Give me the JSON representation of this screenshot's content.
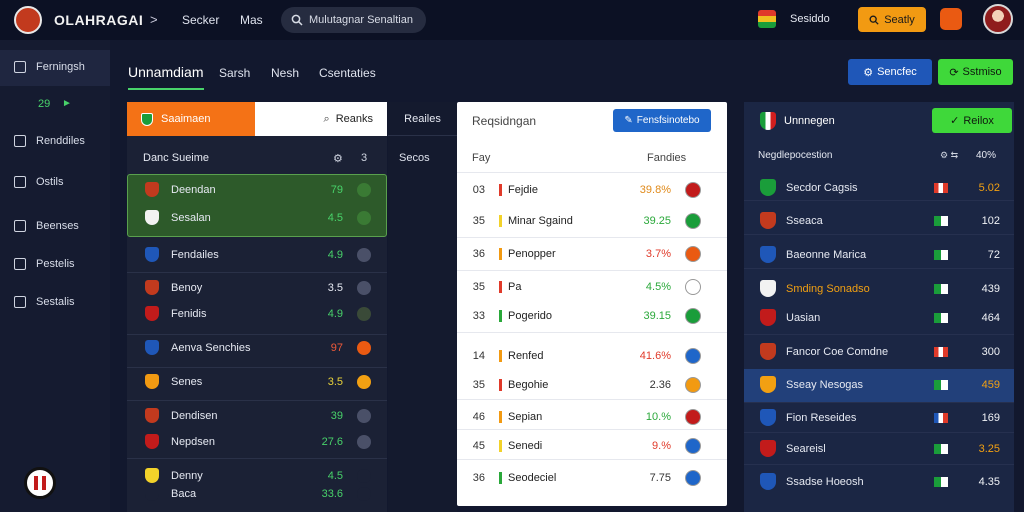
{
  "topbar": {
    "brand": "OLAHRAGAI",
    "chevron": ">",
    "nav_1": "Secker",
    "nav_2": "Mas",
    "search_value": "Mulutagnar Senaltian",
    "username": "Sesiddo",
    "action_label": "Seatly"
  },
  "sidebar": {
    "items": [
      {
        "label": "Ferningsh",
        "icon": "grid-icon"
      },
      {
        "label": "Renddiles",
        "icon": "calendar-icon"
      },
      {
        "label": "Ostils",
        "icon": "list-icon"
      },
      {
        "label": "Beenses",
        "icon": "home-icon"
      },
      {
        "label": "Pestelis",
        "icon": "pin-icon"
      },
      {
        "label": "Sestalis",
        "icon": "briefcase-icon"
      }
    ],
    "count": "29",
    "count_arrow": "►"
  },
  "section": {
    "title": "Unnamdiam",
    "tabs": [
      "Sarsh",
      "Nesh",
      "Csentaties"
    ],
    "btn_blue": "Sencfec",
    "btn_green": "Sstmiso"
  },
  "panel1": {
    "tab_active": "Saaimaen",
    "tab_input": "Reanks",
    "head": "Danc Sueime",
    "head_icon": "⚙",
    "head_num": "3",
    "rows": [
      {
        "name": "Deendan",
        "value": "79",
        "color": "#48d26a",
        "crest": "#c23a1e",
        "ic": "#3a7a34"
      },
      {
        "name": "Sesalan",
        "value": "4.5",
        "color": "#48d26a",
        "crest": "#f2f2f2",
        "ic": "#3a7a34"
      },
      {
        "name": "Fendailes",
        "value": "4.9",
        "color": "#48d26a",
        "crest": "#1f57b8",
        "ic": "#4a5068"
      },
      {
        "name": "Benoy",
        "value": "3.5",
        "color": "#e6e9f2",
        "crest": "#c23a1e",
        "ic": "#4a5068"
      },
      {
        "name": "Fenidis",
        "value": "4.9",
        "color": "#48d26a",
        "crest": "#c21b1b",
        "ic": "#3a4a38"
      },
      {
        "name": "Aenva Senchies",
        "value": "97",
        "color": "#f05a3a",
        "crest": "#1f57b8",
        "ic": "#ea5a12"
      },
      {
        "name": "Senes",
        "value": "3.5",
        "color": "#e8d23a",
        "crest": "#f29a12",
        "ic": "#f2a012"
      },
      {
        "name": "Dendisen",
        "value": "39",
        "color": "#48d26a",
        "crest": "#c23a1e",
        "ic": "#4a5068"
      },
      {
        "name": "Nepdsen",
        "value": "27.6",
        "color": "#48d26a",
        "crest": "#c21b1b",
        "ic": "#4a5068"
      },
      {
        "name": "Denny",
        "value": "4.5",
        "color": "#48d26a",
        "crest": "#f2d22a",
        "ic": "#1b2135"
      },
      {
        "name": "Baca",
        "value": "33.6",
        "color": "#48d26a",
        "crest": "#1b2135",
        "ic": "#1b2135"
      }
    ]
  },
  "strip": {
    "head": "Reailes",
    "sub": "Secos"
  },
  "panel2": {
    "title": "Reqsidngan",
    "btn": "Fensfsinotebo",
    "head_1": "Fay",
    "head_2": "Fandies",
    "rows": [
      {
        "num": "03",
        "bar": "#e03a2a",
        "name": "Fejdie",
        "value": "39.8%",
        "vcolor": "#e08a1a",
        "ic": "#c21b1b"
      },
      {
        "num": "35",
        "bar": "#f2d22a",
        "name": "Minar Sgaind",
        "value": "39.25",
        "vcolor": "#2aa83a",
        "ic": "#1a9d3a"
      },
      {
        "num": "36",
        "bar": "#f29a12",
        "name": "Penopper",
        "value": "3.7%",
        "vcolor": "#e03a2a",
        "ic": "#ea5a12"
      },
      {
        "num": "35",
        "bar": "#e03a2a",
        "name": "Pa",
        "value": "4.5%",
        "vcolor": "#2aa83a",
        "ic": "#ffffff"
      },
      {
        "num": "33",
        "bar": "#2aa83a",
        "name": "Pogerido",
        "value": "39.15",
        "vcolor": "#2aa83a",
        "ic": "#1a9d3a"
      },
      {
        "num": "14",
        "bar": "#f29a12",
        "name": "Renfed",
        "value": "41.6%",
        "vcolor": "#e03a2a",
        "ic": "#1f66c9"
      },
      {
        "num": "35",
        "bar": "#e03a2a",
        "name": "Begohie",
        "value": "2.36",
        "vcolor": "#333333",
        "ic": "#f29a12"
      },
      {
        "num": "46",
        "bar": "#f29a12",
        "name": "Sepian",
        "value": "10.%",
        "vcolor": "#2aa83a",
        "ic": "#c21b1b"
      },
      {
        "num": "45",
        "bar": "#f2d22a",
        "name": "Senedi",
        "value": "9.%",
        "vcolor": "#e03a2a",
        "ic": "#1f66c9"
      },
      {
        "num": "36",
        "bar": "#2aa83a",
        "name": "Seodeciel",
        "value": "7.75",
        "vcolor": "#333333",
        "ic": "#1f66c9"
      }
    ]
  },
  "panel3": {
    "title": "Unnnegen",
    "btn": "Reilox",
    "head": "Negdlepocestion",
    "head_icon": "⚙ ⇆",
    "head_right": "40%",
    "rows": [
      {
        "name": "Secdor Cagsis",
        "value": "5.02",
        "vcolor": "#f2a012",
        "crest": "#1a9d3a",
        "flag": "linear-gradient(90deg,#e03a2a 0 33%,#fff 33% 66%,#e03a2a 66%)"
      },
      {
        "name": "Sseaca",
        "value": "102",
        "vcolor": "#f0f2f6",
        "crest": "#c23a1e",
        "flag": "linear-gradient(90deg,#1a9d3a 0 50%,#fff 50%)"
      },
      {
        "name": "Baeonne Marica",
        "value": "72",
        "vcolor": "#f0f2f6",
        "crest": "#1f57b8",
        "flag": "linear-gradient(90deg,#1a9d3a 0 50%,#fff 50%)"
      },
      {
        "name": "Smding Sonadso",
        "value": "439",
        "vcolor": "#f0f2f6",
        "crest": "#f2f2f2",
        "flag": "linear-gradient(90deg,#1a9d3a 0 50%,#fff 50%)",
        "ncolor": "#f2a012"
      },
      {
        "name": "Uasian",
        "value": "464",
        "vcolor": "#f0f2f6",
        "crest": "#c21b1b",
        "flag": "linear-gradient(90deg,#1a9d3a 0 50%,#fff 50%)"
      },
      {
        "name": "Fancor Coe Comdne",
        "value": "300",
        "vcolor": "#f0f2f6",
        "crest": "#c23a1e",
        "flag": "linear-gradient(90deg,#e03a2a 0 33%,#fff 33% 66%,#e03a2a 66%)"
      },
      {
        "name": "Sseay Nesogas",
        "value": "459",
        "vcolor": "#f2a012",
        "crest": "#f2a012",
        "flag": "linear-gradient(90deg,#1a9d3a 0 50%,#fff 50%)"
      },
      {
        "name": "Fion Reseides",
        "value": "169",
        "vcolor": "#f0f2f6",
        "crest": "#1f57b8",
        "flag": "linear-gradient(90deg,#1f57b8 0 33%,#fff 33% 66%,#e03a2a 66%)"
      },
      {
        "name": "Seareisl",
        "value": "3.25",
        "vcolor": "#f2a012",
        "crest": "#c21b1b",
        "flag": "linear-gradient(90deg,#1a9d3a 0 50%,#fff 50%)"
      },
      {
        "name": "Ssadse Hoeosh",
        "value": "4.35",
        "vcolor": "#f0f2f6",
        "crest": "#1f57b8",
        "flag": "linear-gradient(90deg,#1a9d3a 0 50%,#fff 50%)"
      }
    ]
  }
}
